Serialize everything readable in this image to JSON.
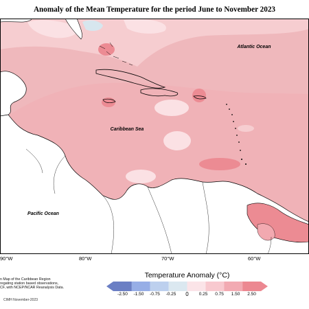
{
  "title": "Anomaly of the Mean Temperature for the period June to November 2023",
  "labels": {
    "atlantic": "Atlantic Ocean",
    "caribbean": "Caribbean Sea",
    "pacific": "Pacific Ocean"
  },
  "longitudes": [
    "60°W",
    "70°W",
    "80°W",
    "90°W"
  ],
  "credits_lines": [
    "n Map of the Caribbean Region",
    "regating station based observations,",
    "CF, with NCEP/NCAR Reanalysis Data."
  ],
  "cimh": "CIMH November-2023",
  "legend": {
    "title": "Temperature Anomaly (°C)",
    "ticks": [
      "-2.50",
      "-1.50",
      "-0.75",
      "-0.25",
      "0",
      "0.25",
      "0.75",
      "1.50",
      "2.50"
    ],
    "colors": [
      "#6b7fc4",
      "#97aee6",
      "#bdd0ee",
      "#dbe8f0",
      "#fbe4e8",
      "#f8c9cf",
      "#f2aab2",
      "#ec8891"
    ]
  },
  "colors": {
    "anomaly_warm": "#efb8bc",
    "anomaly_mid": "#f2a9b0",
    "anomaly_hot": "#ec8b93",
    "anomaly_light": "#fbe1e4",
    "land": "#ffffff",
    "cool_patch": "#d7e6ee"
  }
}
